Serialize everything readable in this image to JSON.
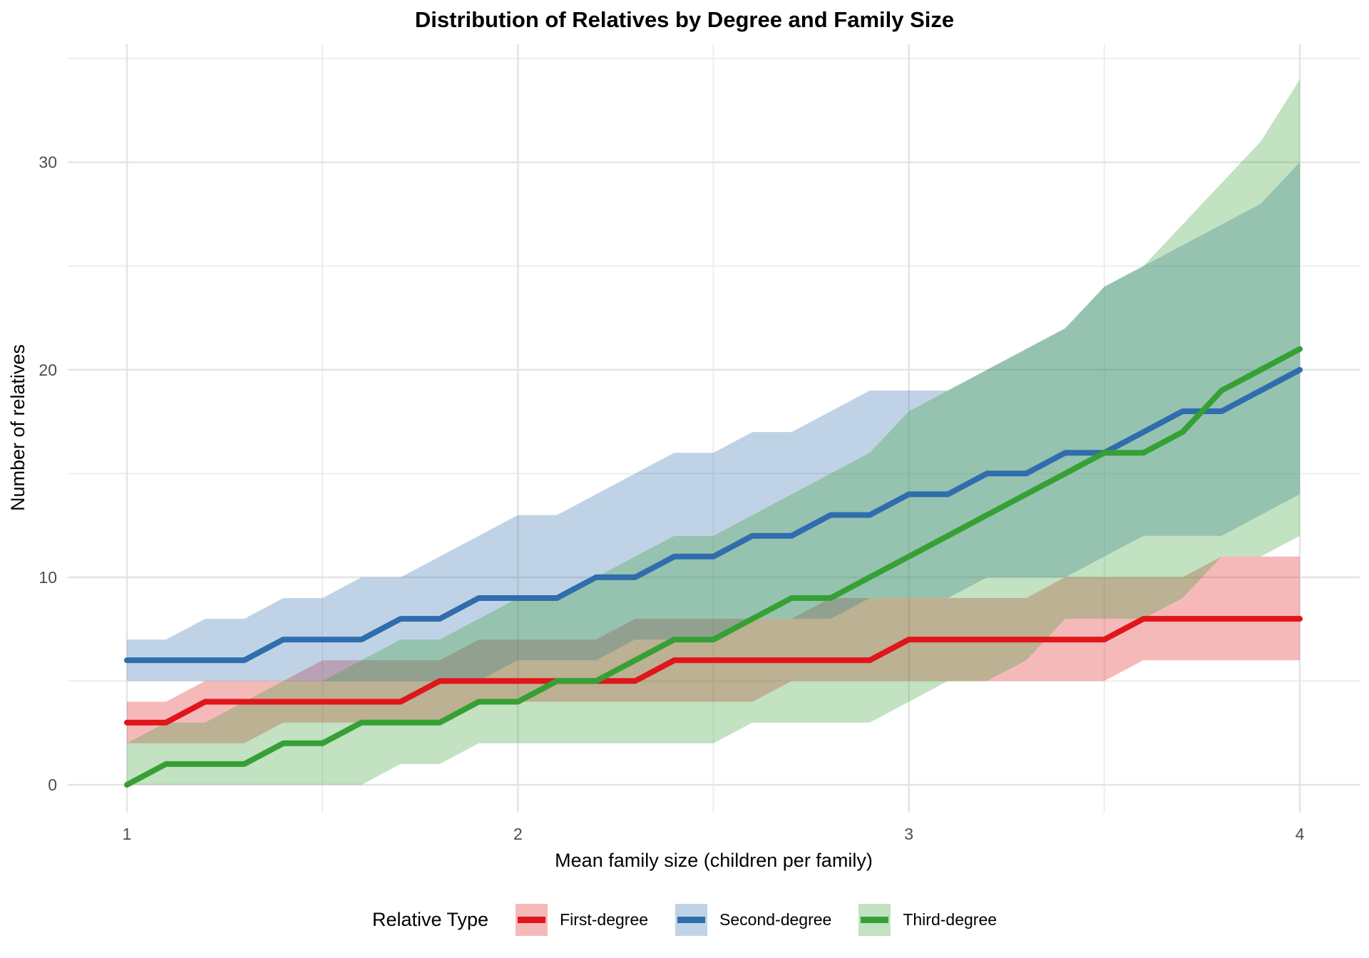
{
  "title": "Distribution of Relatives by Degree and Family Size",
  "legend": {
    "title": "Relative Type"
  },
  "chart_data": {
    "type": "line",
    "title": "Distribution of Relatives by Degree and Family Size",
    "xlabel": "Mean family size (children per family)",
    "ylabel": "Number of relatives",
    "legend_title": "Relative Type",
    "legend_position": "bottom",
    "grid": "on",
    "xlim": [
      0.8486,
      4.1532
    ],
    "ylim": [
      -1.34,
      35.69
    ],
    "x_major_ticks": [
      1,
      2,
      3,
      4
    ],
    "x_minor_ticks": [
      1.5,
      2.5,
      3.5
    ],
    "y_major_ticks": [
      0,
      10,
      20,
      30
    ],
    "y_minor_ticks": [
      5,
      15,
      25,
      35
    ],
    "band_opacity": 0.3,
    "x": [
      1.0,
      1.1,
      1.2,
      1.3,
      1.4,
      1.5,
      1.6,
      1.7,
      1.8,
      1.9,
      2.0,
      2.1,
      2.2,
      2.3,
      2.4,
      2.5,
      2.6,
      2.7,
      2.8,
      2.9,
      3.0,
      3.1,
      3.2,
      3.3,
      3.4,
      3.5,
      3.6,
      3.7,
      3.8,
      3.9,
      4.0
    ],
    "series": [
      {
        "name": "First-degree",
        "color": "#E0161B",
        "median": [
          3,
          3,
          4,
          4,
          4,
          4,
          4,
          4,
          5,
          5,
          5,
          5,
          5,
          5,
          6,
          6,
          6,
          6,
          6,
          6,
          7,
          7,
          7,
          7,
          7,
          7,
          8,
          8,
          8,
          8,
          8
        ],
        "lower": [
          2,
          2,
          2,
          2,
          3,
          3,
          3,
          3,
          3,
          4,
          4,
          4,
          4,
          4,
          4,
          4,
          4,
          5,
          5,
          5,
          5,
          5,
          5,
          5,
          5,
          5,
          6,
          6,
          6,
          6,
          6
        ],
        "upper": [
          4,
          4,
          5,
          5,
          5,
          6,
          6,
          6,
          6,
          7,
          7,
          7,
          7,
          8,
          8,
          8,
          8,
          8,
          9,
          9,
          9,
          9,
          9,
          9,
          10,
          10,
          10,
          10,
          11,
          11,
          11
        ]
      },
      {
        "name": "Second-degree",
        "color": "#2F6DAD",
        "median": [
          6,
          6,
          6,
          6,
          7,
          7,
          7,
          8,
          8,
          9,
          9,
          9,
          10,
          10,
          11,
          11,
          12,
          12,
          13,
          13,
          14,
          14,
          15,
          15,
          16,
          16,
          17,
          18,
          18,
          19,
          20
        ],
        "lower": [
          5,
          5,
          5,
          5,
          5,
          5,
          5,
          5,
          5,
          5,
          6,
          6,
          6,
          7,
          7,
          7,
          8,
          8,
          8,
          9,
          9,
          9,
          10,
          10,
          10,
          11,
          12,
          12,
          12,
          13,
          14
        ],
        "upper": [
          7,
          7,
          8,
          8,
          9,
          9,
          10,
          10,
          11,
          12,
          13,
          13,
          14,
          15,
          16,
          16,
          17,
          17,
          18,
          19,
          19,
          19,
          20,
          21,
          22,
          24,
          25,
          26,
          27,
          28,
          30
        ]
      },
      {
        "name": "Third-degree",
        "color": "#36A035",
        "median": [
          0,
          1,
          1,
          1,
          2,
          2,
          3,
          3,
          3,
          4,
          4,
          5,
          5,
          6,
          7,
          7,
          8,
          9,
          9,
          10,
          11,
          12,
          13,
          14,
          15,
          16,
          16,
          17,
          19,
          20,
          21
        ],
        "lower": [
          0,
          0,
          0,
          0,
          0,
          0,
          0,
          1,
          1,
          2,
          2,
          2,
          2,
          2,
          2,
          2,
          3,
          3,
          3,
          3,
          4,
          5,
          5,
          6,
          8,
          8,
          8,
          9,
          11,
          11,
          12
        ],
        "upper": [
          2,
          3,
          3,
          4,
          5,
          5,
          6,
          7,
          7,
          8,
          9,
          9,
          10,
          11,
          12,
          12,
          13,
          14,
          15,
          16,
          18,
          19,
          20,
          21,
          22,
          24,
          25,
          27,
          29,
          31,
          34
        ]
      }
    ]
  }
}
